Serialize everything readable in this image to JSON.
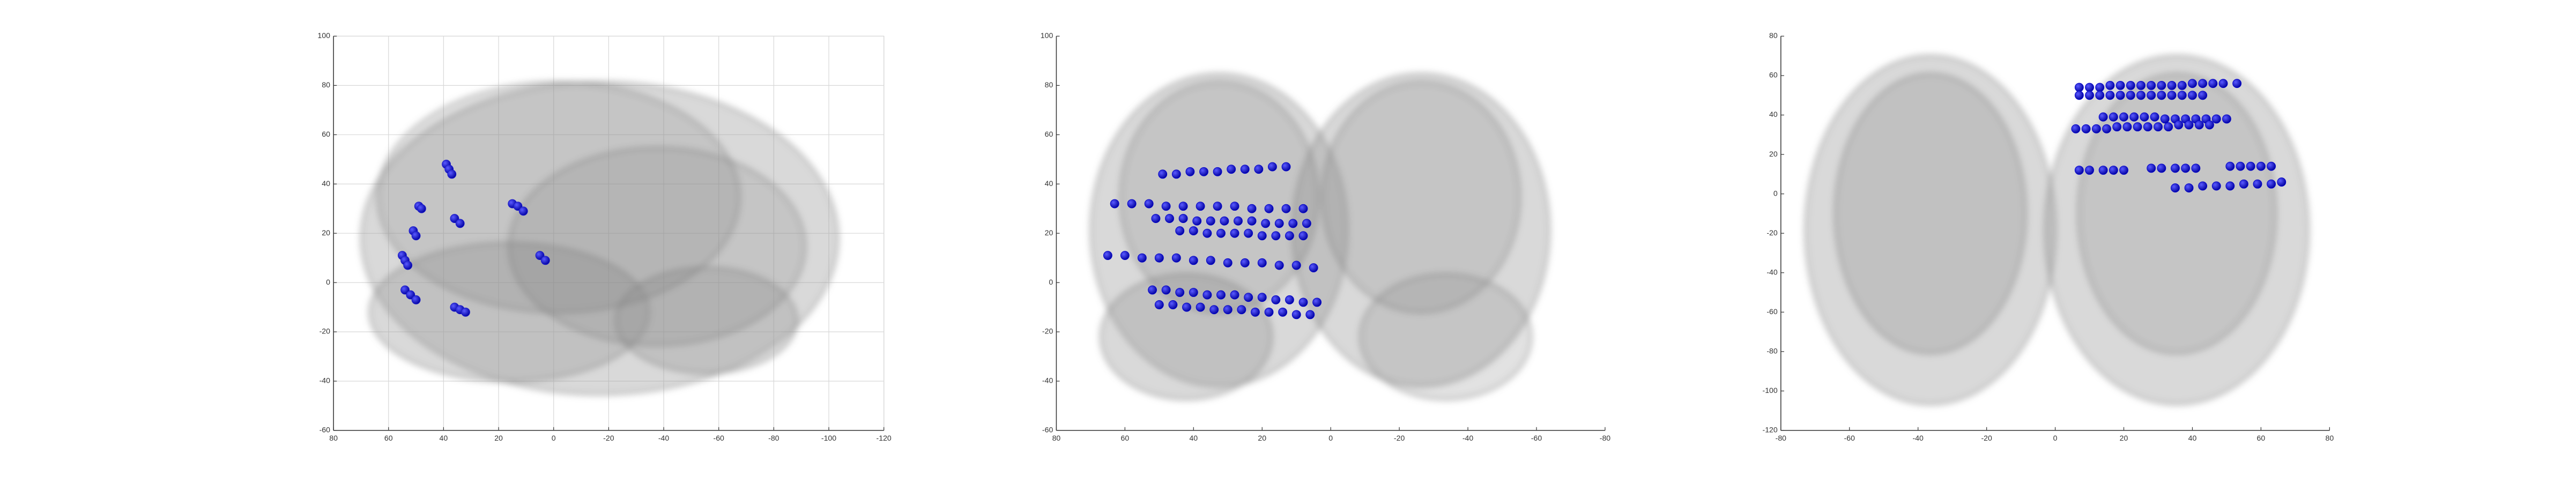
{
  "chart_data": [
    {
      "type": "scatter",
      "xlim": [
        80,
        -120
      ],
      "ylim": [
        -60,
        100
      ],
      "xticks": [
        80,
        60,
        40,
        20,
        0,
        -20,
        -40,
        -60,
        -80,
        -100,
        -120
      ],
      "yticks": [
        -60,
        -40,
        -20,
        0,
        20,
        40,
        60,
        80,
        100
      ],
      "grid": true,
      "color": "#1a1acc",
      "x": [
        39,
        38,
        37,
        49,
        48,
        36,
        34,
        51,
        50,
        55,
        54,
        53,
        54,
        52,
        50,
        36,
        34,
        32,
        15,
        13,
        11,
        5,
        3
      ],
      "y": [
        48,
        46,
        44,
        31,
        30,
        26,
        24,
        21,
        19,
        11,
        9,
        7,
        -3,
        -5,
        -7,
        -10,
        -11,
        -12,
        32,
        31,
        29,
        11,
        9
      ]
    },
    {
      "type": "scatter",
      "xlim": [
        80,
        -80
      ],
      "ylim": [
        -60,
        100
      ],
      "xticks": [
        80,
        60,
        40,
        20,
        0,
        -20,
        -40,
        -60,
        -80
      ],
      "yticks": [
        -60,
        -40,
        -20,
        0,
        20,
        40,
        60,
        80,
        100
      ],
      "grid": false,
      "color": "#0000cc",
      "x": [
        49,
        45,
        41,
        37,
        33,
        29,
        25,
        21,
        17,
        13,
        63,
        58,
        53,
        48,
        43,
        38,
        33,
        28,
        23,
        18,
        13,
        8,
        51,
        47,
        43,
        39,
        35,
        31,
        27,
        23,
        19,
        15,
        11,
        7,
        44,
        40,
        36,
        32,
        28,
        24,
        20,
        16,
        12,
        8,
        65,
        60,
        55,
        50,
        45,
        40,
        35,
        30,
        25,
        20,
        15,
        10,
        5,
        52,
        48,
        44,
        40,
        36,
        32,
        28,
        24,
        20,
        16,
        12,
        8,
        4,
        50,
        46,
        42,
        38,
        34,
        30,
        26,
        22,
        18,
        14,
        10,
        6
      ],
      "y": [
        44,
        44,
        45,
        45,
        45,
        46,
        46,
        46,
        47,
        47,
        32,
        32,
        32,
        31,
        31,
        31,
        31,
        31,
        30,
        30,
        30,
        30,
        26,
        26,
        26,
        25,
        25,
        25,
        25,
        25,
        24,
        24,
        24,
        24,
        21,
        21,
        20,
        20,
        20,
        20,
        19,
        19,
        19,
        19,
        11,
        11,
        10,
        10,
        10,
        9,
        9,
        8,
        8,
        8,
        7,
        7,
        6,
        -3,
        -3,
        -4,
        -4,
        -5,
        -5,
        -5,
        -6,
        -6,
        -7,
        -7,
        -8,
        -8,
        -9,
        -9,
        -10,
        -10,
        -11,
        -11,
        -11,
        -12,
        -12,
        -12,
        -13,
        -13
      ]
    },
    {
      "type": "scatter",
      "xlim": [
        -80,
        80
      ],
      "ylim": [
        -120,
        80
      ],
      "xticks": [
        -80,
        -60,
        -40,
        -20,
        0,
        20,
        40,
        60,
        80
      ],
      "yticks": [
        -120,
        -100,
        -80,
        -60,
        -40,
        -20,
        0,
        20,
        40,
        60,
        80
      ],
      "grid": false,
      "color": "#0000cc",
      "x": [
        7,
        10,
        13,
        16,
        19,
        22,
        25,
        28,
        31,
        34,
        37,
        40,
        43,
        46,
        49,
        53,
        7,
        10,
        13,
        16,
        19,
        22,
        25,
        28,
        31,
        34,
        37,
        40,
        43,
        14,
        17,
        20,
        23,
        26,
        29,
        32,
        35,
        38,
        41,
        44,
        47,
        50,
        6,
        9,
        12,
        15,
        18,
        21,
        24,
        27,
        30,
        33,
        36,
        39,
        42,
        45,
        7,
        10,
        14,
        17,
        20,
        28,
        31,
        35,
        38,
        41,
        51,
        54,
        57,
        60,
        63,
        35,
        39,
        43,
        47,
        51,
        55,
        59,
        63,
        66
      ],
      "y": [
        54,
        54,
        54,
        55,
        55,
        55,
        55,
        55,
        55,
        55,
        55,
        56,
        56,
        56,
        56,
        56,
        50,
        50,
        50,
        50,
        50,
        50,
        50,
        50,
        50,
        50,
        50,
        50,
        50,
        39,
        39,
        39,
        39,
        39,
        39,
        38,
        38,
        38,
        38,
        38,
        38,
        38,
        33,
        33,
        33,
        33,
        34,
        34,
        34,
        34,
        34,
        34,
        35,
        35,
        35,
        35,
        12,
        12,
        12,
        12,
        12,
        13,
        13,
        13,
        13,
        13,
        14,
        14,
        14,
        14,
        14,
        3,
        3,
        4,
        4,
        4,
        5,
        5,
        5,
        6
      ]
    }
  ]
}
